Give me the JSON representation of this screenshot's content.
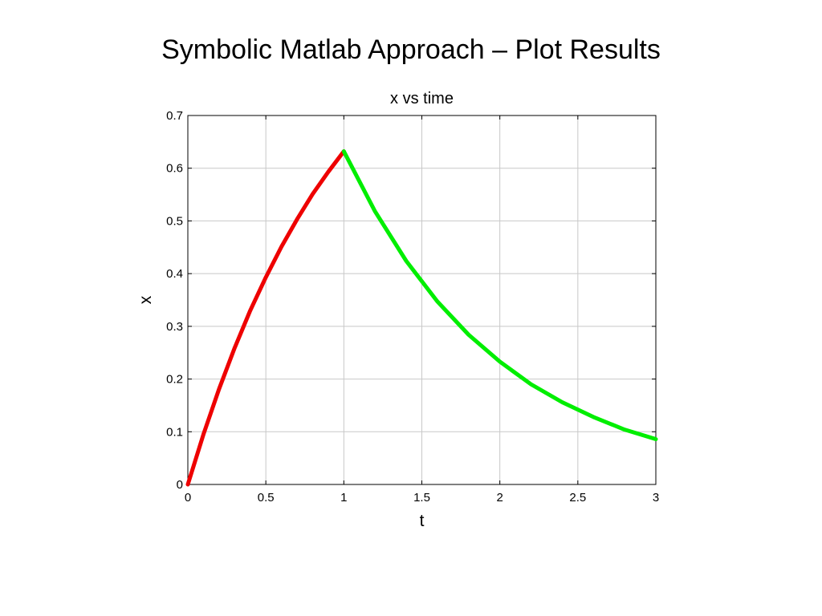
{
  "slide": {
    "title": "Symbolic Matlab Approach – Plot Results"
  },
  "chart_data": {
    "type": "line",
    "title": "x vs time",
    "xlabel": "t",
    "ylabel": "x",
    "xlim": [
      0,
      3
    ],
    "ylim": [
      0,
      0.7
    ],
    "xticks": [
      0,
      0.5,
      1,
      1.5,
      2,
      2.5,
      3
    ],
    "xtick_labels": [
      "0",
      "0.5",
      "1",
      "1.5",
      "2",
      "2.5",
      "3"
    ],
    "yticks": [
      0,
      0.1,
      0.2,
      0.3,
      0.4,
      0.5,
      0.6,
      0.7
    ],
    "ytick_labels": [
      "0",
      "0.1",
      "0.2",
      "0.3",
      "0.4",
      "0.5",
      "0.6",
      "0.7"
    ],
    "grid": true,
    "series": [
      {
        "color": "#ee0000",
        "x": [
          0,
          0.1,
          0.2,
          0.3,
          0.4,
          0.5,
          0.6,
          0.7,
          0.8,
          0.9,
          1.0
        ],
        "y": [
          0,
          0.095,
          0.181,
          0.259,
          0.33,
          0.393,
          0.451,
          0.503,
          0.551,
          0.593,
          0.632
        ]
      },
      {
        "color": "#00ee00",
        "x": [
          1.0,
          1.2,
          1.4,
          1.6,
          1.8,
          2.0,
          2.2,
          2.4,
          2.6,
          2.8,
          3.0
        ],
        "y": [
          0.632,
          0.518,
          0.424,
          0.347,
          0.284,
          0.233,
          0.19,
          0.156,
          0.128,
          0.104,
          0.086
        ]
      }
    ]
  }
}
